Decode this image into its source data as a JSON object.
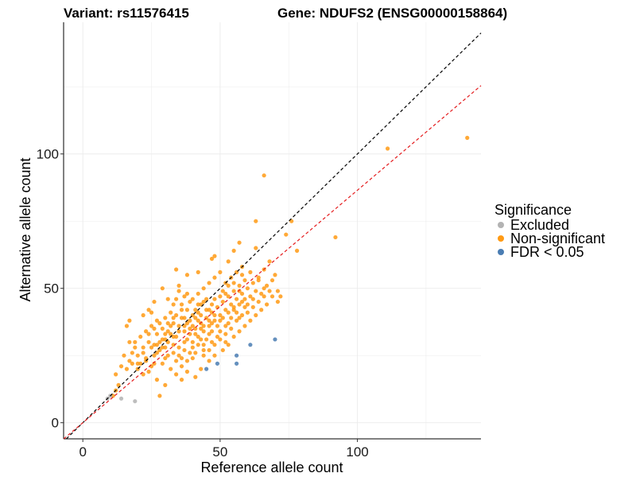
{
  "chart_data": {
    "type": "scatter",
    "title_left": "Variant: rs11576415",
    "title_right": "Gene: NDUFS2 (ENSG00000158864)",
    "xlabel": "Reference allele count",
    "ylabel": "Alternative allele count",
    "xlim": [
      -7,
      145
    ],
    "ylim": [
      -6,
      149
    ],
    "x_ticks": [
      0,
      50,
      100
    ],
    "y_ticks": [
      0,
      50,
      100
    ],
    "grid": true,
    "reference_lines": [
      {
        "name": "identity",
        "color": "#000000",
        "style": "dashed",
        "slope": 1,
        "intercept": 0
      },
      {
        "name": "fit",
        "color": "#e41a1c",
        "style": "dashed",
        "slope": 0.865,
        "intercept": 0
      }
    ],
    "legend": {
      "title": "Significance",
      "position": "right",
      "entries": [
        {
          "label": "Excluded",
          "color": "#b3b3b3"
        },
        {
          "label": "Non-significant",
          "color": "#ff9a14"
        },
        {
          "label": "FDR < 0.05",
          "color": "#4a7db3"
        }
      ]
    },
    "series": [
      {
        "name": "Excluded",
        "color": "#b3b3b3",
        "points": [
          [
            19,
            8
          ],
          [
            14,
            9
          ],
          [
            9,
            9
          ],
          [
            10,
            10
          ]
        ]
      },
      {
        "name": "FDR < 0.05",
        "color": "#4a7db3",
        "points": [
          [
            45,
            20
          ],
          [
            49,
            22
          ],
          [
            56,
            22
          ],
          [
            56,
            25
          ],
          [
            61,
            29
          ],
          [
            70,
            31
          ]
        ]
      },
      {
        "name": "Non-significant",
        "color": "#ff9a14",
        "points": [
          [
            140,
            106
          ],
          [
            111,
            102
          ],
          [
            66,
            92
          ],
          [
            92,
            69
          ],
          [
            78,
            64
          ],
          [
            76,
            75
          ],
          [
            74,
            70
          ],
          [
            63,
            75
          ],
          [
            63,
            65
          ],
          [
            57,
            67
          ],
          [
            55,
            64
          ],
          [
            53,
            60
          ],
          [
            48,
            62
          ],
          [
            47,
            61
          ],
          [
            68,
            60
          ],
          [
            70,
            55
          ],
          [
            66,
            57
          ],
          [
            64,
            53
          ],
          [
            71,
            49
          ],
          [
            72,
            47
          ],
          [
            58,
            58
          ],
          [
            34,
            57
          ],
          [
            38,
            55
          ],
          [
            42,
            56
          ],
          [
            35,
            51
          ],
          [
            29,
            50
          ],
          [
            31,
            46
          ],
          [
            33,
            44
          ],
          [
            26,
            45
          ],
          [
            24,
            42
          ],
          [
            25,
            41
          ],
          [
            22,
            40
          ],
          [
            17,
            38
          ],
          [
            16,
            36
          ],
          [
            17,
            30
          ],
          [
            19,
            28
          ],
          [
            15,
            25
          ],
          [
            14,
            21
          ],
          [
            12,
            18
          ],
          [
            13,
            14
          ],
          [
            12,
            12
          ],
          [
            11,
            10
          ],
          [
            21,
            22
          ],
          [
            24,
            19
          ],
          [
            27,
            16
          ],
          [
            28,
            10
          ],
          [
            30,
            14
          ],
          [
            34,
            18
          ],
          [
            36,
            16
          ],
          [
            38,
            19
          ],
          [
            41,
            17
          ],
          [
            43,
            20
          ],
          [
            46,
            23
          ],
          [
            48,
            25
          ],
          [
            51,
            27
          ],
          [
            53,
            29
          ],
          [
            40,
            24
          ],
          [
            37,
            27
          ],
          [
            33,
            29
          ],
          [
            30,
            31
          ],
          [
            27,
            33
          ],
          [
            24,
            30
          ],
          [
            22,
            28
          ],
          [
            20,
            25
          ],
          [
            23,
            23
          ],
          [
            26,
            25
          ],
          [
            28,
            27
          ],
          [
            31,
            25
          ],
          [
            34,
            23
          ],
          [
            36,
            21
          ],
          [
            40,
            30
          ],
          [
            42,
            32
          ],
          [
            44,
            34
          ],
          [
            46,
            36
          ],
          [
            48,
            38
          ],
          [
            50,
            40
          ],
          [
            52,
            42
          ],
          [
            54,
            44
          ],
          [
            56,
            46
          ],
          [
            58,
            48
          ],
          [
            60,
            50
          ],
          [
            62,
            52
          ],
          [
            64,
            54
          ],
          [
            66,
            50
          ],
          [
            60,
            44
          ],
          [
            58,
            40
          ],
          [
            56,
            38
          ],
          [
            54,
            35
          ],
          [
            52,
            33
          ],
          [
            50,
            31
          ],
          [
            48,
            29
          ],
          [
            46,
            27
          ],
          [
            44,
            29
          ],
          [
            42,
            38
          ],
          [
            40,
            40
          ],
          [
            38,
            42
          ],
          [
            36,
            44
          ],
          [
            34,
            46
          ],
          [
            32,
            41
          ],
          [
            30,
            39
          ],
          [
            28,
            37
          ],
          [
            26,
            35
          ],
          [
            24,
            33
          ],
          [
            35,
            36
          ],
          [
            37,
            34
          ],
          [
            39,
            33
          ],
          [
            41,
            35
          ],
          [
            43,
            37
          ],
          [
            45,
            39
          ],
          [
            47,
            41
          ],
          [
            49,
            43
          ],
          [
            51,
            45
          ],
          [
            53,
            47
          ],
          [
            55,
            49
          ],
          [
            57,
            51
          ],
          [
            59,
            53
          ],
          [
            45,
            46
          ],
          [
            43,
            44
          ],
          [
            41,
            42
          ],
          [
            39,
            45
          ],
          [
            37,
            47
          ],
          [
            35,
            49
          ],
          [
            33,
            39
          ],
          [
            31,
            37
          ],
          [
            29,
            35
          ],
          [
            27,
            38
          ],
          [
            25,
            36
          ],
          [
            23,
            34
          ],
          [
            21,
            32
          ],
          [
            19,
            30
          ],
          [
            18,
            26
          ],
          [
            17,
            23
          ],
          [
            16,
            20
          ],
          [
            20,
            20
          ],
          [
            22,
            18
          ],
          [
            25,
            21
          ],
          [
            29,
            22
          ],
          [
            32,
            20
          ],
          [
            35,
            25
          ],
          [
            38,
            23
          ],
          [
            41,
            26
          ],
          [
            44,
            25
          ],
          [
            47,
            30
          ],
          [
            50,
            34
          ],
          [
            53,
            37
          ],
          [
            56,
            41
          ],
          [
            59,
            43
          ],
          [
            62,
            46
          ],
          [
            65,
            48
          ],
          [
            67,
            51
          ],
          [
            69,
            53
          ],
          [
            71,
            45
          ],
          [
            69,
            47
          ],
          [
            67,
            44
          ],
          [
            65,
            42
          ],
          [
            63,
            40
          ],
          [
            61,
            38
          ],
          [
            59,
            36
          ],
          [
            57,
            34
          ],
          [
            55,
            32
          ],
          [
            52,
            30
          ],
          [
            49,
            36
          ],
          [
            46,
            33
          ],
          [
            43,
            31
          ],
          [
            40,
            28
          ],
          [
            37,
            30
          ],
          [
            34,
            32
          ],
          [
            31,
            34
          ],
          [
            28,
            30
          ],
          [
            25,
            28
          ],
          [
            22,
            26
          ],
          [
            42,
            48
          ],
          [
            44,
            50
          ],
          [
            46,
            52
          ],
          [
            48,
            54
          ],
          [
            50,
            56
          ],
          [
            52,
            52
          ],
          [
            54,
            54
          ],
          [
            56,
            56
          ],
          [
            36,
            39
          ],
          [
            38,
            37
          ],
          [
            40,
            36
          ],
          [
            32,
            33
          ],
          [
            30,
            28
          ],
          [
            27,
            26
          ],
          [
            50,
            47
          ],
          [
            51,
            49
          ],
          [
            53,
            51
          ],
          [
            55,
            42
          ],
          [
            57,
            44
          ],
          [
            61,
            47
          ],
          [
            63,
            49
          ],
          [
            47,
            44
          ],
          [
            45,
            42
          ],
          [
            43,
            40
          ],
          [
            41,
            39
          ],
          [
            39,
            38
          ],
          [
            37,
            36
          ],
          [
            35,
            34
          ],
          [
            33,
            32
          ],
          [
            31,
            30
          ],
          [
            29,
            28
          ],
          [
            27,
            29
          ],
          [
            44,
            36
          ],
          [
            46,
            38
          ],
          [
            48,
            40
          ],
          [
            50,
            38
          ],
          [
            52,
            36
          ],
          [
            54,
            39
          ],
          [
            58,
            45
          ],
          [
            60,
            41
          ],
          [
            62,
            43
          ],
          [
            64,
            45
          ],
          [
            66,
            47
          ],
          [
            68,
            49
          ],
          [
            49,
            32
          ],
          [
            47,
            34
          ],
          [
            45,
            31
          ],
          [
            42,
            29
          ],
          [
            39,
            26
          ],
          [
            36,
            24
          ],
          [
            33,
            26
          ],
          [
            30,
            24
          ],
          [
            26,
            22
          ],
          [
            23,
            24
          ],
          [
            20,
            22
          ],
          [
            18,
            22
          ],
          [
            35,
            28
          ],
          [
            38,
            31
          ],
          [
            41,
            33
          ],
          [
            44,
            27
          ],
          [
            40,
            46
          ],
          [
            42,
            44
          ],
          [
            36,
            42
          ],
          [
            34,
            40
          ],
          [
            38,
            48
          ],
          [
            48,
            46
          ],
          [
            52,
            48
          ],
          [
            55,
            52
          ],
          [
            58,
            55
          ],
          [
            61,
            56
          ],
          [
            57,
            49
          ],
          [
            59,
            46
          ],
          [
            32,
            36
          ],
          [
            29,
            31
          ],
          [
            26,
            29
          ],
          [
            39,
            35
          ],
          [
            43,
            35
          ],
          [
            47,
            37
          ],
          [
            51,
            39
          ],
          [
            53,
            41
          ],
          [
            55,
            43
          ],
          [
            57,
            39
          ],
          [
            46,
            42
          ],
          [
            44,
            45
          ],
          [
            42,
            41
          ],
          [
            37,
            39
          ],
          [
            33,
            37
          ],
          [
            30,
            33
          ]
        ]
      }
    ]
  }
}
